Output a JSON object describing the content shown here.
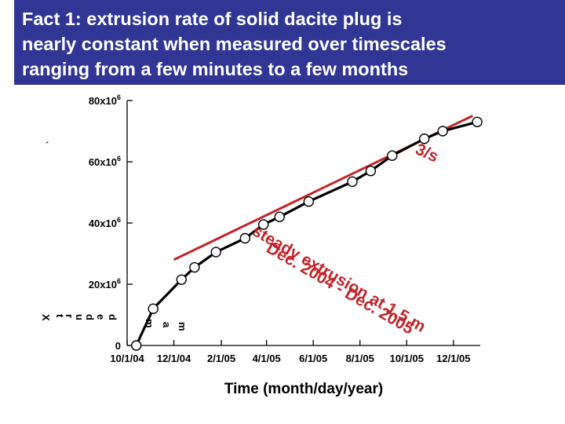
{
  "title": {
    "lines": [
      "Fact 1: extrusion rate of solid dacite plug is",
      "nearly constant when measured over timescales",
      "ranging from a few minutes to a few months"
    ]
  },
  "chart_data": {
    "type": "line",
    "xlabel": "Time (month/day/year)",
    "ylabel_fragments": [
      "X",
      "t",
      "r",
      "u",
      "d",
      "e",
      "d",
      "m",
      "a",
      "m"
    ],
    "stray_mark": "´",
    "x_ticks": [
      {
        "date": "2004-10-01",
        "label": "10/1/04"
      },
      {
        "date": "2004-12-01",
        "label": "12/1/04"
      },
      {
        "date": "2005-02-01",
        "label": "2/1/05"
      },
      {
        "date": "2005-04-01",
        "label": "4/1/05"
      },
      {
        "date": "2005-06-01",
        "label": "6/1/05"
      },
      {
        "date": "2005-08-01",
        "label": "8/1/05"
      },
      {
        "date": "2005-10-01",
        "label": "10/1/05"
      },
      {
        "date": "2005-12-01",
        "label": "12/1/05"
      }
    ],
    "y_ticks": [
      {
        "value": 0,
        "base": "0",
        "exp": ""
      },
      {
        "value": 20000000,
        "base": "20x10",
        "exp": "6"
      },
      {
        "value": 40000000,
        "base": "40x10",
        "exp": "6"
      },
      {
        "value": 60000000,
        "base": "60x10",
        "exp": "6"
      },
      {
        "value": 80000000,
        "base": "80x10",
        "exp": "6"
      }
    ],
    "xlim": [
      "2004-10-01",
      "2006-01-05"
    ],
    "ylim": [
      0,
      80000000
    ],
    "series": [
      {
        "points": [
          {
            "x": "2004-10-13",
            "y": 0
          },
          {
            "x": "2004-11-04",
            "y": 12000000
          },
          {
            "x": "2004-12-11",
            "y": 21500000
          },
          {
            "x": "2004-12-28",
            "y": 25500000
          },
          {
            "x": "2005-01-25",
            "y": 30500000
          },
          {
            "x": "2005-03-04",
            "y": 35000000
          },
          {
            "x": "2005-03-28",
            "y": 39500000
          },
          {
            "x": "2005-04-18",
            "y": 42000000
          },
          {
            "x": "2005-05-26",
            "y": 47000000
          },
          {
            "x": "2005-07-22",
            "y": 53500000
          },
          {
            "x": "2005-08-15",
            "y": 57000000
          },
          {
            "x": "2005-09-12",
            "y": 62000000
          },
          {
            "x": "2005-10-24",
            "y": 67500000
          },
          {
            "x": "2005-11-17",
            "y": 70000000
          },
          {
            "x": "2006-01-01",
            "y": 73000000
          }
        ]
      }
    ],
    "fit_line": {
      "color": "#c0262b",
      "from": {
        "x": "2004-12-01",
        "y": 28000000
      },
      "to": {
        "x": "2005-12-26",
        "y": 75000000
      }
    },
    "annotation": {
      "text": "steady extrusion at 1.5 m",
      "subtext": "Dec. 2004 - Dec. 2005",
      "fragment": "3/s"
    }
  }
}
